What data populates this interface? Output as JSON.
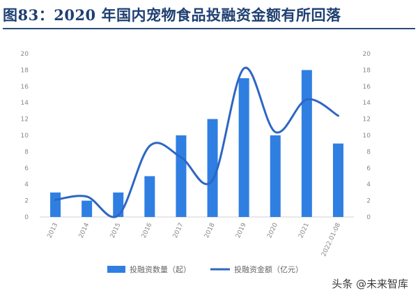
{
  "title": "图83：2020 年国内宠物食品投融资金额有所回落",
  "watermark": "头条 @未来智库",
  "colors": {
    "bar": "#2f7fe3",
    "line": "#2d66c4",
    "title": "#1f3f72",
    "axis_text": "#888888",
    "grid": "#d0d0d0"
  },
  "chart_data": {
    "type": "bar",
    "categories": [
      "2013",
      "2014",
      "2015",
      "2016",
      "2017",
      "2018",
      "2019",
      "2020",
      "2021",
      "2022.01-08"
    ],
    "series": [
      {
        "name": "投融资数量（起）",
        "type": "bar",
        "axis": "left",
        "values": [
          3,
          2,
          3,
          5,
          10,
          12,
          17,
          10,
          18,
          9
        ]
      },
      {
        "name": "投融资金额（亿元）",
        "type": "line",
        "axis": "right",
        "values": [
          2.1,
          2.5,
          0.2,
          8.7,
          7.3,
          4.5,
          18.2,
          10.4,
          14.4,
          12.4
        ]
      }
    ],
    "y_left": {
      "ylim": [
        0,
        20
      ],
      "ticks": [
        "0",
        "2",
        "4",
        "6",
        "8",
        "10",
        "12",
        "14",
        "16",
        "18",
        "20"
      ]
    },
    "y_right": {
      "ylim": [
        0,
        20
      ],
      "ticks": [
        "0",
        "2",
        "4",
        "6",
        "8",
        "10",
        "12",
        "14",
        "16",
        "18",
        "20"
      ]
    },
    "legend": "bottom",
    "grid": false
  }
}
